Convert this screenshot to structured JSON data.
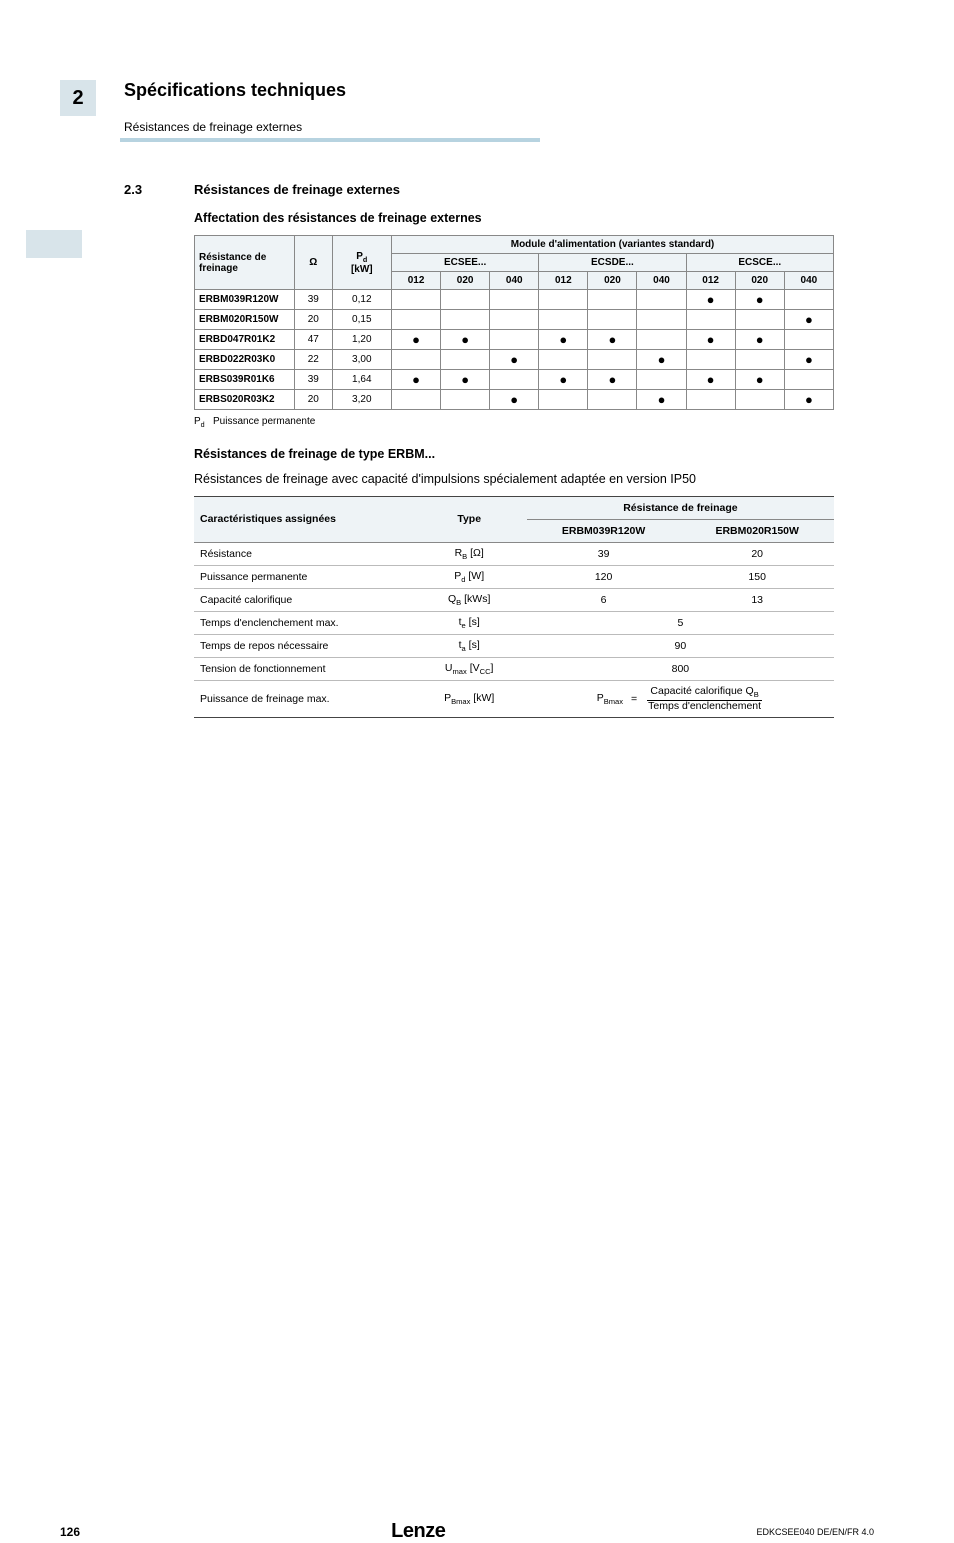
{
  "header": {
    "section_number": "2",
    "title": "Spécifications techniques",
    "subtitle": "Résistances de freinage externes"
  },
  "subsection": {
    "number": "2.3",
    "title": "Résistances de freinage externes"
  },
  "heading1": "Affectation des résistances de freinage externes",
  "table1": {
    "col_resistor": "Résistance de freinage",
    "col_ohm": "Ω",
    "col_pd": "P",
    "col_pd_sub": "d",
    "col_pd_unit": "[kW]",
    "module_header": "Module d'alimentation (variantes standard)",
    "groups": [
      "ECSEE...",
      "ECSDE...",
      "ECSCE..."
    ],
    "subcols": [
      "012",
      "020",
      "040"
    ],
    "rows": [
      {
        "name": "ERBM039R120W",
        "ohm": "39",
        "pd": "0,12",
        "dots": [
          "",
          "",
          "",
          "",
          "",
          "",
          "●",
          "●",
          ""
        ]
      },
      {
        "name": "ERBM020R150W",
        "ohm": "20",
        "pd": "0,15",
        "dots": [
          "",
          "",
          "",
          "",
          "",
          "",
          "",
          "",
          "●"
        ]
      },
      {
        "name": "ERBD047R01K2",
        "ohm": "47",
        "pd": "1,20",
        "dots": [
          "●",
          "●",
          "",
          "●",
          "●",
          "",
          "●",
          "●",
          ""
        ]
      },
      {
        "name": "ERBD022R03K0",
        "ohm": "22",
        "pd": "3,00",
        "dots": [
          "",
          "",
          "●",
          "",
          "",
          "●",
          "",
          "",
          "●"
        ]
      },
      {
        "name": "ERBS039R01K6",
        "ohm": "39",
        "pd": "1,64",
        "dots": [
          "●",
          "●",
          "",
          "●",
          "●",
          "",
          "●",
          "●",
          ""
        ]
      },
      {
        "name": "ERBS020R03K2",
        "ohm": "20",
        "pd": "3,20",
        "dots": [
          "",
          "",
          "●",
          "",
          "",
          "●",
          "",
          "",
          "●"
        ]
      }
    ]
  },
  "legend": {
    "symbol": "P",
    "sub": "d",
    "text": "Puissance permanente"
  },
  "heading2": "Résistances de freinage de type ERBM...",
  "paragraph2": "Résistances de freinage avec capacité d'impulsions spécialement adaptée en version IP50",
  "table2": {
    "h_char": "Caractéristiques assignées",
    "h_type": "Type",
    "h_res": "Résistance de freinage",
    "models": [
      "ERBM039R120W",
      "ERBM020R150W"
    ],
    "rows": [
      {
        "label": "Résistance",
        "type_html": "R<sub>B</sub> [Ω]",
        "v1": "39",
        "v2": "20"
      },
      {
        "label": "Puissance permanente",
        "type_html": "P<sub>d</sub> [W]",
        "v1": "120",
        "v2": "150"
      },
      {
        "label": "Capacité calorifique",
        "type_html": "Q<sub>B</sub> [kWs]",
        "v1": "6",
        "v2": "13"
      },
      {
        "label": "Temps d'enclenchement max.",
        "type_html": "t<sub>e</sub> [s]",
        "span": "5"
      },
      {
        "label": "Temps de repos nécessaire",
        "type_html": "t<sub>a</sub> [s]",
        "span": "90"
      },
      {
        "label": "Tension de fonctionnement",
        "type_html": "U<sub>max</sub> [V<sub>CC</sub>]",
        "span": "800"
      }
    ],
    "last_row": {
      "label": "Puissance de freinage max.",
      "type_html": "P<sub>Bmax</sub> [kW]",
      "lhs": "P<sub>Bmax</sub>",
      "eq": "=",
      "num": "Capacité calorifique Q<sub>B</sub>",
      "den": "Temps d'enclenchement"
    }
  },
  "footer": {
    "page": "126",
    "brand": "Lenze",
    "doc_code": "EDKCSEE040  DE/EN/FR  4.0"
  }
}
